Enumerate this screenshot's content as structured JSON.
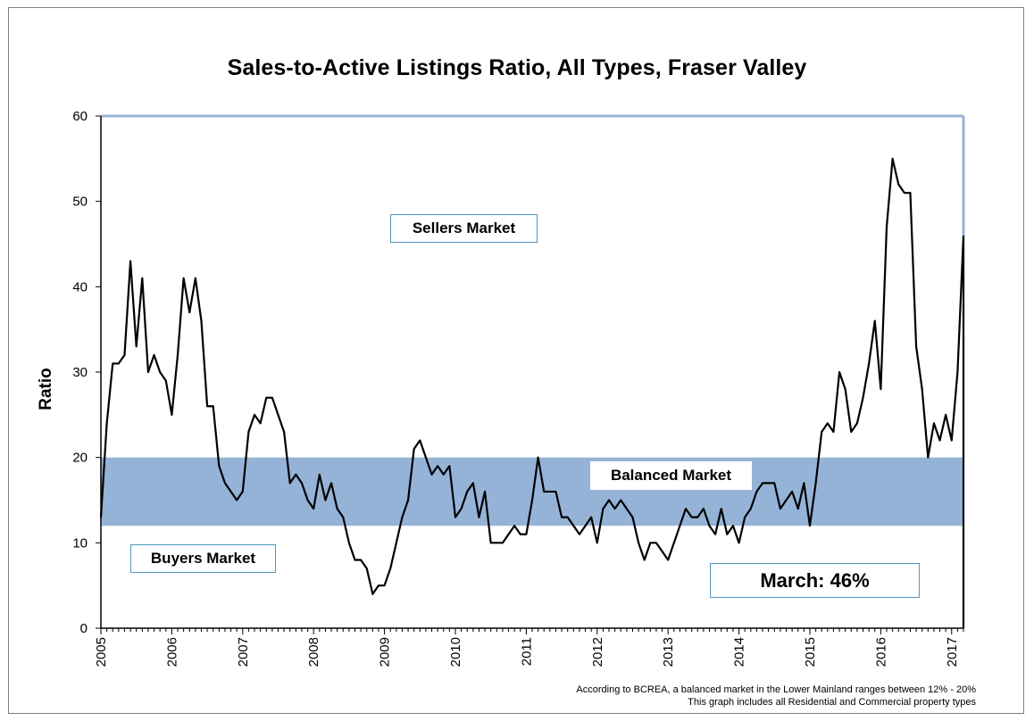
{
  "chart_data": {
    "type": "line",
    "title": "Sales-to-Active Listings Ratio, All Types, Fraser Valley",
    "xlabel": "",
    "ylabel": "Ratio",
    "ylim": [
      0,
      60
    ],
    "yticks": [
      "0",
      "10",
      "20",
      "30",
      "40",
      "50",
      "60"
    ],
    "x_tick_labels": [
      "2005",
      "2006",
      "2007",
      "2008",
      "2009",
      "2010",
      "2011",
      "2012",
      "2013",
      "2014",
      "2015",
      "2016",
      "2017"
    ],
    "x_start": 2005,
    "x_step_months": 1,
    "balanced_band": [
      12,
      20
    ],
    "series": [
      {
        "name": "Sales-to-Active Listings Ratio",
        "values": [
          13,
          24,
          31,
          31,
          32,
          43,
          33,
          41,
          30,
          32,
          30,
          29,
          25,
          32,
          41,
          37,
          41,
          36,
          26,
          26,
          19,
          17,
          16,
          15,
          16,
          23,
          25,
          24,
          27,
          27,
          25,
          23,
          17,
          18,
          17,
          15,
          14,
          18,
          15,
          17,
          14,
          13,
          10,
          8,
          8,
          7,
          4,
          5,
          5,
          7,
          10,
          13,
          15,
          21,
          22,
          20,
          18,
          19,
          18,
          19,
          13,
          14,
          16,
          17,
          13,
          16,
          10,
          10,
          10,
          11,
          12,
          11,
          11,
          15,
          20,
          16,
          16,
          16,
          13,
          13,
          12,
          11,
          12,
          13,
          10,
          14,
          15,
          14,
          15,
          14,
          13,
          10,
          8,
          10,
          10,
          9,
          8,
          10,
          12,
          14,
          13,
          13,
          14,
          12,
          11,
          14,
          11,
          12,
          10,
          13,
          14,
          16,
          17,
          17,
          17,
          14,
          15,
          16,
          14,
          17,
          12,
          17,
          23,
          24,
          23,
          30,
          28,
          23,
          24,
          27,
          31,
          36,
          28,
          47,
          55,
          52,
          51,
          51,
          33,
          28,
          20,
          24,
          22,
          25,
          22,
          30,
          46
        ]
      }
    ]
  },
  "annotations": {
    "sellers": "Sellers Market",
    "buyers": "Buyers Market",
    "balanced": "Balanced Market",
    "latest": "March: 46%"
  },
  "notes": {
    "line1": "According to BCREA, a balanced market in the Lower Mainland ranges between 12% - 20%",
    "line2": "This graph includes all Residential and Commercial property types"
  },
  "colors": {
    "band": "#95b3d7",
    "border": "#95b3d7",
    "line": "#000000",
    "box_border": "#4f98c3"
  }
}
